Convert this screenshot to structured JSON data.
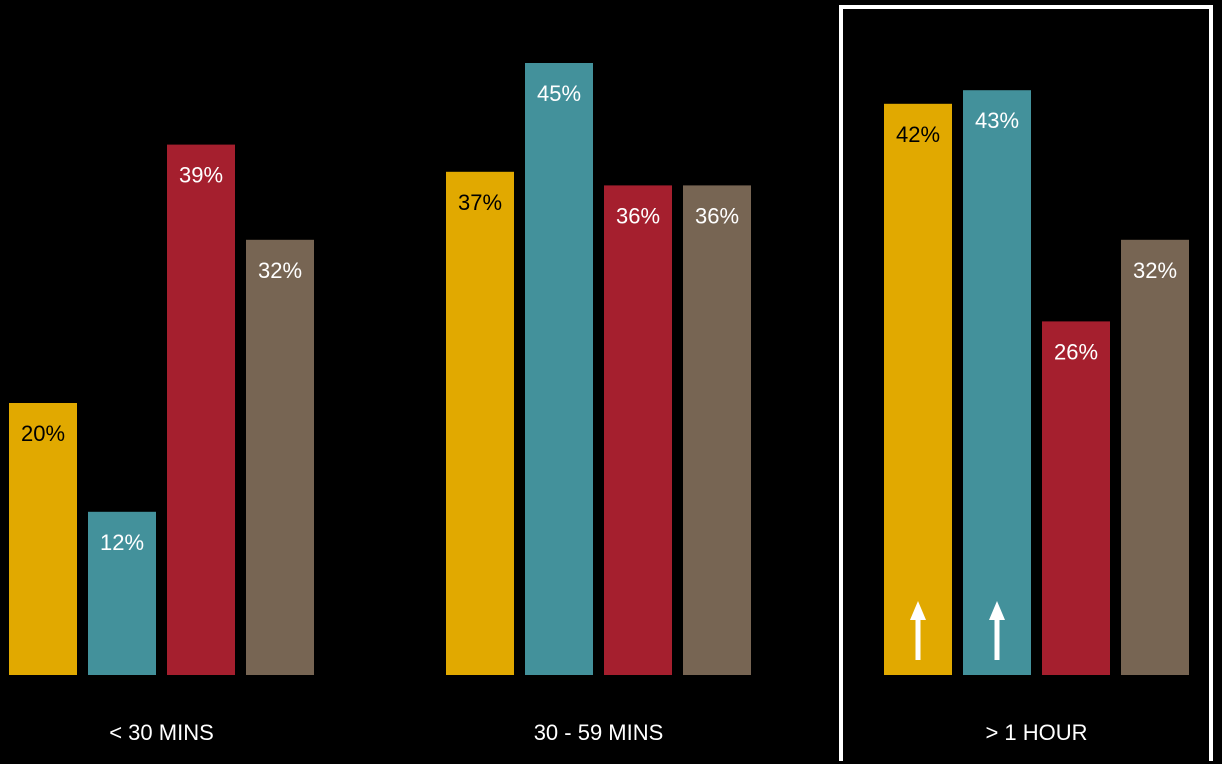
{
  "chart_data": {
    "type": "bar",
    "categories": [
      "< 30 MINS",
      "30 - 59 MINS",
      "> 1 HOUR"
    ],
    "series": [
      {
        "values": [
          20,
          37,
          42
        ],
        "color": "#E1A900",
        "label_color": "#000000"
      },
      {
        "values": [
          12,
          45,
          43
        ],
        "color": "#43919B",
        "label_color": "#ffffff"
      },
      {
        "values": [
          39,
          36,
          26
        ],
        "color": "#A51F2E",
        "label_color": "#ffffff"
      },
      {
        "values": [
          32,
          36,
          32
        ],
        "color": "#776553",
        "label_color": "#ffffff"
      }
    ],
    "value_suffix": "%",
    "ylim": [
      0,
      50
    ],
    "grid": false,
    "legend": "none",
    "highlighted_category": "> 1 HOUR",
    "up_arrows": [
      {
        "category": "> 1 HOUR",
        "series_index": 0,
        "icon": "up-arrow-icon"
      },
      {
        "category": "> 1 HOUR",
        "series_index": 1,
        "icon": "up-arrow-icon"
      }
    ]
  }
}
